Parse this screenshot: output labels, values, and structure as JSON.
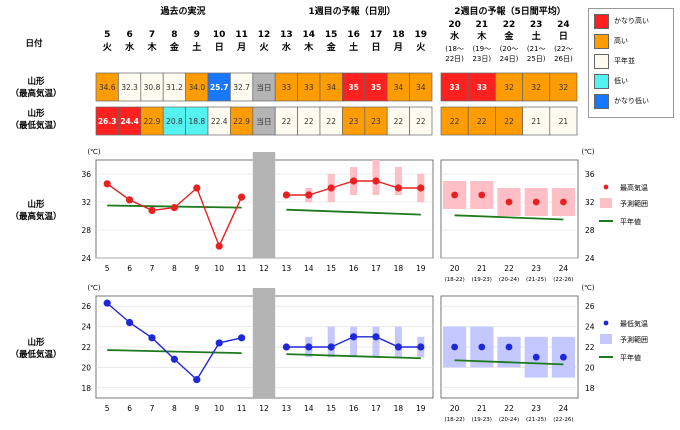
{
  "header": {
    "sec_past": "過去の実況",
    "sec_week1": "1週目の予報（日別）",
    "sec_week2": "2週目の予報（5日間平均）",
    "row_day": "日付"
  },
  "colors": {
    "very_high": "#ff2020",
    "high": "#ff9d00",
    "normal": "#fffbf0",
    "low": "#55f2f2",
    "very_low": "#1777ff",
    "today": "#b4b4b4",
    "max_point": "#e82020",
    "max_range": "#ffbfc7",
    "min_point": "#1e28d8",
    "min_range": "#c4c8ff",
    "normal_line": "#1d7a1d"
  },
  "legend": {
    "items": [
      {
        "label": "かなり高い",
        "color": "#ff2020"
      },
      {
        "label": "高い",
        "color": "#ff9d00"
      },
      {
        "label": "平年並",
        "color": "#fffbf0"
      },
      {
        "label": "低い",
        "color": "#55f2f2"
      },
      {
        "label": "かなり低い",
        "color": "#1777ff"
      }
    ]
  },
  "dates": [
    {
      "d": "5",
      "w": "火"
    },
    {
      "d": "6",
      "w": "水"
    },
    {
      "d": "7",
      "w": "木"
    },
    {
      "d": "8",
      "w": "金"
    },
    {
      "d": "9",
      "w": "土"
    },
    {
      "d": "10",
      "w": "日"
    },
    {
      "d": "11",
      "w": "月"
    },
    {
      "d": "12",
      "w": "火"
    },
    {
      "d": "13",
      "w": "水"
    },
    {
      "d": "14",
      "w": "木"
    },
    {
      "d": "15",
      "w": "金"
    },
    {
      "d": "16",
      "w": "土"
    },
    {
      "d": "17",
      "w": "日"
    },
    {
      "d": "18",
      "w": "月"
    },
    {
      "d": "19",
      "w": "火"
    }
  ],
  "week2_dates": [
    {
      "d": "20",
      "w": "水",
      "r1": "(18～",
      "r2": "22日)"
    },
    {
      "d": "21",
      "w": "木",
      "r1": "(19～",
      "r2": "23日)"
    },
    {
      "d": "22",
      "w": "金",
      "r1": "(20～",
      "r2": "24日)"
    },
    {
      "d": "23",
      "w": "土",
      "r1": "(21～",
      "r2": "25日)"
    },
    {
      "d": "24",
      "w": "日",
      "r1": "(22～",
      "r2": "26日)"
    }
  ],
  "table": {
    "row_max_label": [
      "山形",
      "（最高気温）"
    ],
    "row_min_label": [
      "山形",
      "（最低気温）"
    ],
    "today_label": "当日",
    "max_vals": [
      "34.6",
      "32.3",
      "30.8",
      "31.2",
      "34.0",
      "25.7",
      "32.7",
      "当日",
      "33",
      "33",
      "34",
      "35",
      "35",
      "34",
      "34"
    ],
    "max_cls": [
      "high",
      "normal",
      "normal",
      "normal",
      "high",
      "very_low",
      "normal",
      "today",
      "high",
      "high",
      "high",
      "very_high",
      "very_high",
      "high",
      "high"
    ],
    "min_vals": [
      "26.3",
      "24.4",
      "22.9",
      "20.8",
      "18.8",
      "22.4",
      "22.9",
      "当日",
      "22",
      "22",
      "22",
      "23",
      "23",
      "22",
      "22"
    ],
    "min_cls": [
      "very_high",
      "very_high",
      "high",
      "low",
      "low",
      "normal",
      "high",
      "today",
      "normal",
      "normal",
      "normal",
      "high",
      "high",
      "normal",
      "normal"
    ],
    "w2_max_vals": [
      "33",
      "33",
      "32",
      "32",
      "32"
    ],
    "w2_max_cls": [
      "very_high",
      "very_high",
      "high",
      "high",
      "high"
    ],
    "w2_min_vals": [
      "22",
      "22",
      "22",
      "21",
      "21"
    ],
    "w2_min_cls": [
      "high",
      "high",
      "high",
      "normal",
      "normal"
    ]
  },
  "chart_labels": {
    "unit": "(℃)",
    "max_chart_label": [
      "山形",
      "（最高気温）"
    ],
    "min_chart_label": [
      "山形",
      "（最低気温）"
    ],
    "max_legend": [
      "最高気温",
      "予測範囲",
      "平年値"
    ],
    "min_legend": [
      "最低気温",
      "予測範囲",
      "平年値"
    ]
  },
  "chart_data": [
    {
      "type": "line",
      "title": "山形（最高気温）",
      "unit": "℃",
      "ylim": [
        24,
        38
      ],
      "yticks": [
        24,
        28,
        32,
        36
      ],
      "x": [
        "5",
        "6",
        "7",
        "8",
        "9",
        "10",
        "11",
        "12",
        "13",
        "14",
        "15",
        "16",
        "17",
        "18",
        "19"
      ],
      "x2": [
        "20",
        "21",
        "22",
        "23",
        "24"
      ],
      "x2_ranges": [
        "(18-22)",
        "(19-23)",
        "(20-24)",
        "(21-25)",
        "(22-26)"
      ],
      "observed": {
        "x": [
          "5",
          "6",
          "7",
          "8",
          "9",
          "10",
          "11"
        ],
        "values": [
          34.6,
          32.3,
          30.8,
          31.2,
          34.0,
          25.7,
          32.7
        ]
      },
      "forecast": {
        "x": [
          "13",
          "14",
          "15",
          "16",
          "17",
          "18",
          "19"
        ],
        "values": [
          33,
          33,
          34,
          35,
          35,
          34,
          34
        ]
      },
      "forecast_range": {
        "x": [
          "14",
          "15",
          "16",
          "17",
          "18",
          "19"
        ],
        "low": [
          32,
          32,
          33,
          33,
          33,
          32
        ],
        "high": [
          34,
          36,
          37,
          38,
          37,
          36
        ]
      },
      "normal_past": {
        "x": [
          "5",
          "11"
        ],
        "values": [
          31.5,
          31.2
        ]
      },
      "normal_week1": {
        "x": [
          "13",
          "19"
        ],
        "values": [
          30.9,
          30.2
        ]
      },
      "week2": {
        "values": [
          33,
          33,
          32,
          32,
          32
        ],
        "low": [
          31,
          31,
          30,
          30,
          30
        ],
        "high": [
          35,
          35,
          34,
          34,
          34
        ]
      },
      "normal_week2": {
        "values": [
          30.1,
          29.5
        ]
      }
    },
    {
      "type": "line",
      "title": "山形（最低気温）",
      "unit": "℃",
      "ylim": [
        17,
        27
      ],
      "yticks": [
        18,
        20,
        22,
        24,
        26
      ],
      "x": [
        "5",
        "6",
        "7",
        "8",
        "9",
        "10",
        "11",
        "12",
        "13",
        "14",
        "15",
        "16",
        "17",
        "18",
        "19"
      ],
      "x2": [
        "20",
        "21",
        "22",
        "23",
        "24"
      ],
      "x2_ranges": [
        "(18-22)",
        "(19-23)",
        "(20-24)",
        "(21-25)",
        "(22-26)"
      ],
      "observed": {
        "x": [
          "5",
          "6",
          "7",
          "8",
          "9",
          "10",
          "11"
        ],
        "values": [
          26.3,
          24.4,
          22.9,
          20.8,
          18.8,
          22.4,
          22.9
        ]
      },
      "forecast": {
        "x": [
          "13",
          "14",
          "15",
          "16",
          "17",
          "18",
          "19"
        ],
        "values": [
          22,
          22,
          22,
          23,
          23,
          22,
          22
        ]
      },
      "forecast_range": {
        "x": [
          "14",
          "15",
          "16",
          "17",
          "18",
          "19"
        ],
        "low": [
          21,
          21,
          21,
          21,
          21,
          21
        ],
        "high": [
          23,
          24,
          24,
          24,
          24,
          23
        ]
      },
      "normal_past": {
        "x": [
          "5",
          "11"
        ],
        "values": [
          21.7,
          21.4
        ]
      },
      "normal_week1": {
        "x": [
          "13",
          "19"
        ],
        "values": [
          21.3,
          20.9
        ]
      },
      "week2": {
        "values": [
          22,
          22,
          22,
          21,
          21
        ],
        "low": [
          20,
          20,
          20,
          19,
          19
        ],
        "high": [
          24,
          24,
          23,
          23,
          23
        ]
      },
      "normal_week2": {
        "values": [
          20.7,
          20.3
        ]
      }
    }
  ]
}
